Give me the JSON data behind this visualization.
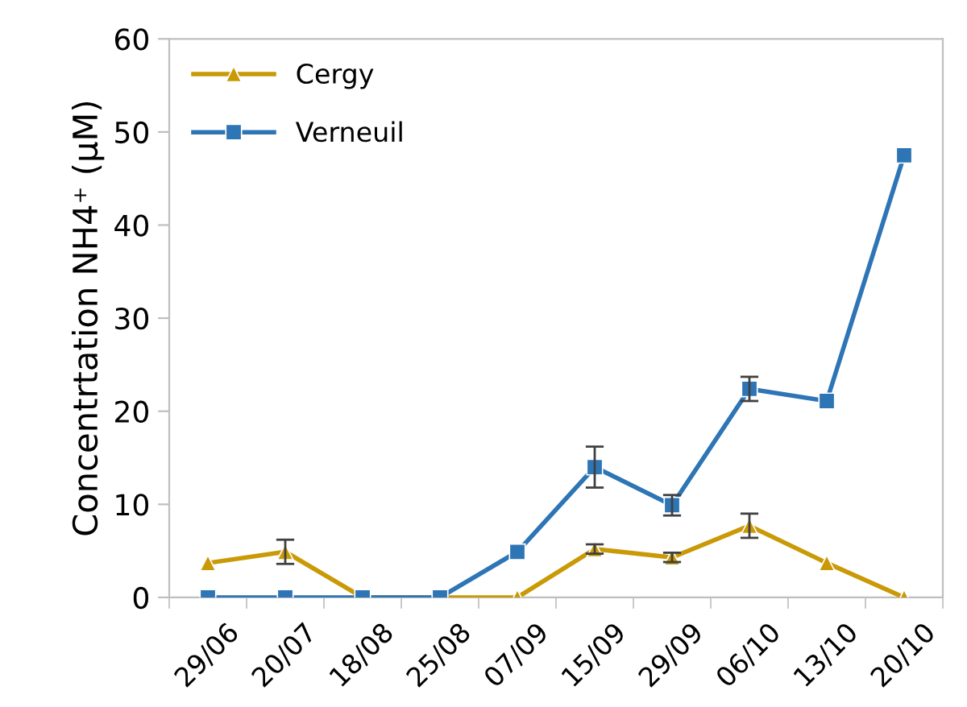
{
  "chart_data": {
    "type": "line",
    "ylabel": "Concentrtation NH4⁺ (µM)",
    "categories": [
      "29/06",
      "20/07",
      "18/08",
      "25/08",
      "07/09",
      "15/09",
      "29/09",
      "06/10",
      "13/10",
      "20/10"
    ],
    "series": [
      {
        "name": "Cergy",
        "color": "#c99a06",
        "marker": "triangle",
        "values": [
          3.7,
          4.9,
          0,
          0,
          0,
          5.2,
          4.3,
          7.7,
          3.7,
          0
        ],
        "errors": [
          null,
          1.3,
          null,
          null,
          null,
          0.5,
          0.5,
          1.3,
          null,
          null
        ]
      },
      {
        "name": "Verneuil",
        "color": "#2e75b6",
        "marker": "square",
        "values": [
          0,
          0,
          0,
          0,
          4.9,
          14.0,
          9.9,
          22.4,
          21.1,
          47.5
        ],
        "errors": [
          null,
          null,
          null,
          null,
          null,
          2.2,
          1.1,
          1.3,
          null,
          null
        ]
      }
    ],
    "ylim": [
      0,
      60
    ],
    "yticks": [
      0,
      10,
      20,
      30,
      40,
      50,
      60
    ],
    "grid": false,
    "legend": "top left",
    "line_style": "solid"
  }
}
